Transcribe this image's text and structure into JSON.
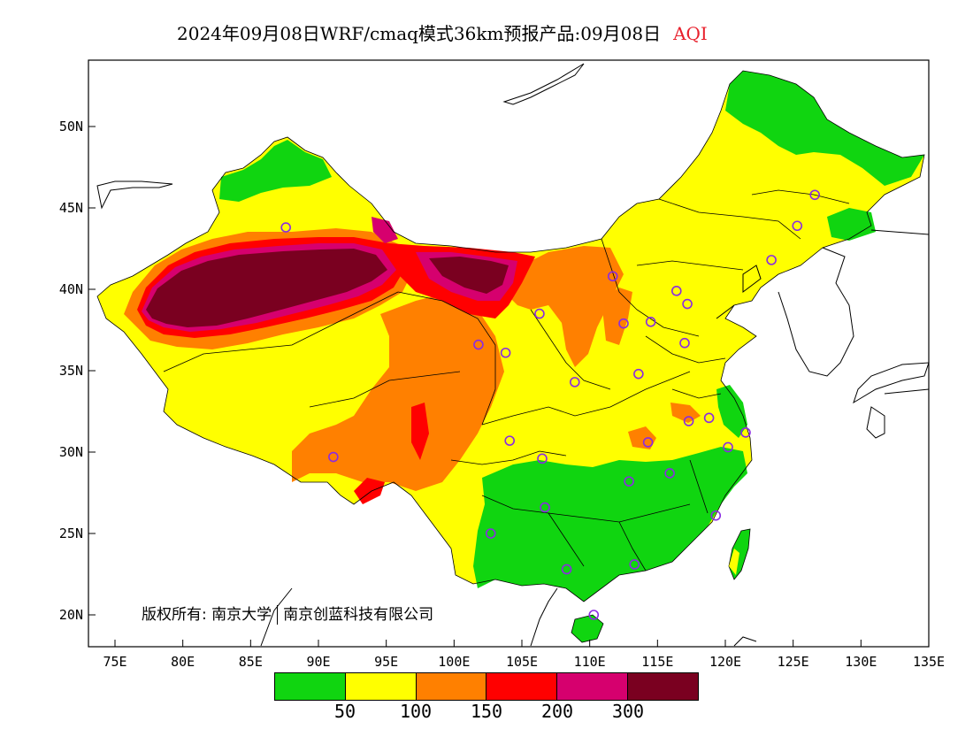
{
  "title": {
    "main": "2024年09月08日WRF/cmaq模式36km预报产品:09月08日",
    "product": "AQI",
    "product_color": "#e8202c"
  },
  "axes": {
    "lat_labels": [
      "50N",
      "45N",
      "40N",
      "35N",
      "30N",
      "25N",
      "20N"
    ],
    "lon_labels": [
      "75E",
      "80E",
      "85E",
      "90E",
      "95E",
      "100E",
      "105E",
      "110E",
      "115E",
      "120E",
      "125E",
      "130E",
      "135E"
    ],
    "lat_values": [
      50,
      45,
      40,
      35,
      30,
      25,
      20
    ],
    "lon_values": [
      75,
      80,
      85,
      90,
      95,
      100,
      105,
      110,
      115,
      120,
      125,
      130,
      135
    ],
    "lat_range": [
      18,
      54
    ],
    "lon_range": [
      73,
      135
    ]
  },
  "legend": {
    "colors": [
      "#10d510",
      "#ffff00",
      "#ff8000",
      "#ff0000",
      "#d6006e",
      "#7a0020"
    ],
    "levels": [
      "50",
      "100",
      "150",
      "200",
      "300"
    ],
    "categories": [
      "0-50",
      "50-100",
      "100-150",
      "150-200",
      "200-300",
      ">300"
    ]
  },
  "copyright": {
    "left": "版权所有: 南京大学",
    "right": "南京创蓝科技有限公司"
  },
  "stations": [
    {
      "lon": 87.6,
      "lat": 43.8
    },
    {
      "lon": 91.1,
      "lat": 29.7
    },
    {
      "lon": 101.8,
      "lat": 36.6
    },
    {
      "lon": 103.8,
      "lat": 36.1
    },
    {
      "lon": 106.3,
      "lat": 38.5
    },
    {
      "lon": 111.7,
      "lat": 40.8
    },
    {
      "lon": 112.5,
      "lat": 37.9
    },
    {
      "lon": 114.5,
      "lat": 38.0
    },
    {
      "lon": 116.4,
      "lat": 39.9
    },
    {
      "lon": 117.2,
      "lat": 39.1
    },
    {
      "lon": 117.0,
      "lat": 36.7
    },
    {
      "lon": 113.6,
      "lat": 34.8
    },
    {
      "lon": 108.9,
      "lat": 34.3
    },
    {
      "lon": 104.1,
      "lat": 30.7
    },
    {
      "lon": 106.5,
      "lat": 29.6
    },
    {
      "lon": 114.3,
      "lat": 30.6
    },
    {
      "lon": 112.9,
      "lat": 28.2
    },
    {
      "lon": 115.9,
      "lat": 28.7
    },
    {
      "lon": 117.3,
      "lat": 31.9
    },
    {
      "lon": 118.8,
      "lat": 32.1
    },
    {
      "lon": 120.2,
      "lat": 30.3
    },
    {
      "lon": 121.5,
      "lat": 31.2
    },
    {
      "lon": 119.3,
      "lat": 26.1
    },
    {
      "lon": 113.3,
      "lat": 23.1
    },
    {
      "lon": 108.3,
      "lat": 22.8
    },
    {
      "lon": 106.7,
      "lat": 26.6
    },
    {
      "lon": 102.7,
      "lat": 25.0
    },
    {
      "lon": 110.3,
      "lat": 20.0
    },
    {
      "lon": 123.4,
      "lat": 41.8
    },
    {
      "lon": 125.3,
      "lat": 43.9
    },
    {
      "lon": 126.6,
      "lat": 45.8
    }
  ]
}
